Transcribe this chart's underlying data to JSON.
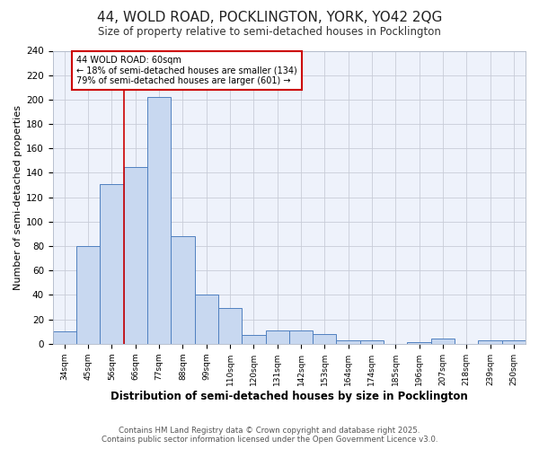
{
  "title": "44, WOLD ROAD, POCKLINGTON, YORK, YO42 2QG",
  "subtitle": "Size of property relative to semi-detached houses in Pocklington",
  "xlabel": "Distribution of semi-detached houses by size in Pocklington",
  "ylabel": "Number of semi-detached properties",
  "categories": [
    "34sqm",
    "45sqm",
    "56sqm",
    "66sqm",
    "77sqm",
    "88sqm",
    "99sqm",
    "110sqm",
    "120sqm",
    "131sqm",
    "142sqm",
    "153sqm",
    "164sqm",
    "174sqm",
    "185sqm",
    "196sqm",
    "207sqm",
    "218sqm",
    "239sqm",
    "250sqm"
  ],
  "values": [
    10,
    80,
    131,
    145,
    202,
    88,
    40,
    29,
    7,
    11,
    11,
    8,
    3,
    3,
    0,
    1,
    4,
    0,
    3,
    3
  ],
  "bar_color": "#c8d8f0",
  "bar_edge_color": "#5080c0",
  "plot_bg_color": "#eef2fb",
  "fig_bg_color": "#ffffff",
  "grid_color": "#c8ccd8",
  "red_line_x": 2.5,
  "annotation_title": "44 WOLD ROAD: 60sqm",
  "annotation_line1": "← 18% of semi-detached houses are smaller (134)",
  "annotation_line2": "79% of semi-detached houses are larger (601) →",
  "annotation_color": "#cc0000",
  "ylim": [
    0,
    240
  ],
  "yticks": [
    0,
    20,
    40,
    60,
    80,
    100,
    120,
    140,
    160,
    180,
    200,
    220,
    240
  ],
  "footer_line1": "Contains HM Land Registry data © Crown copyright and database right 2025.",
  "footer_line2": "Contains public sector information licensed under the Open Government Licence v3.0."
}
